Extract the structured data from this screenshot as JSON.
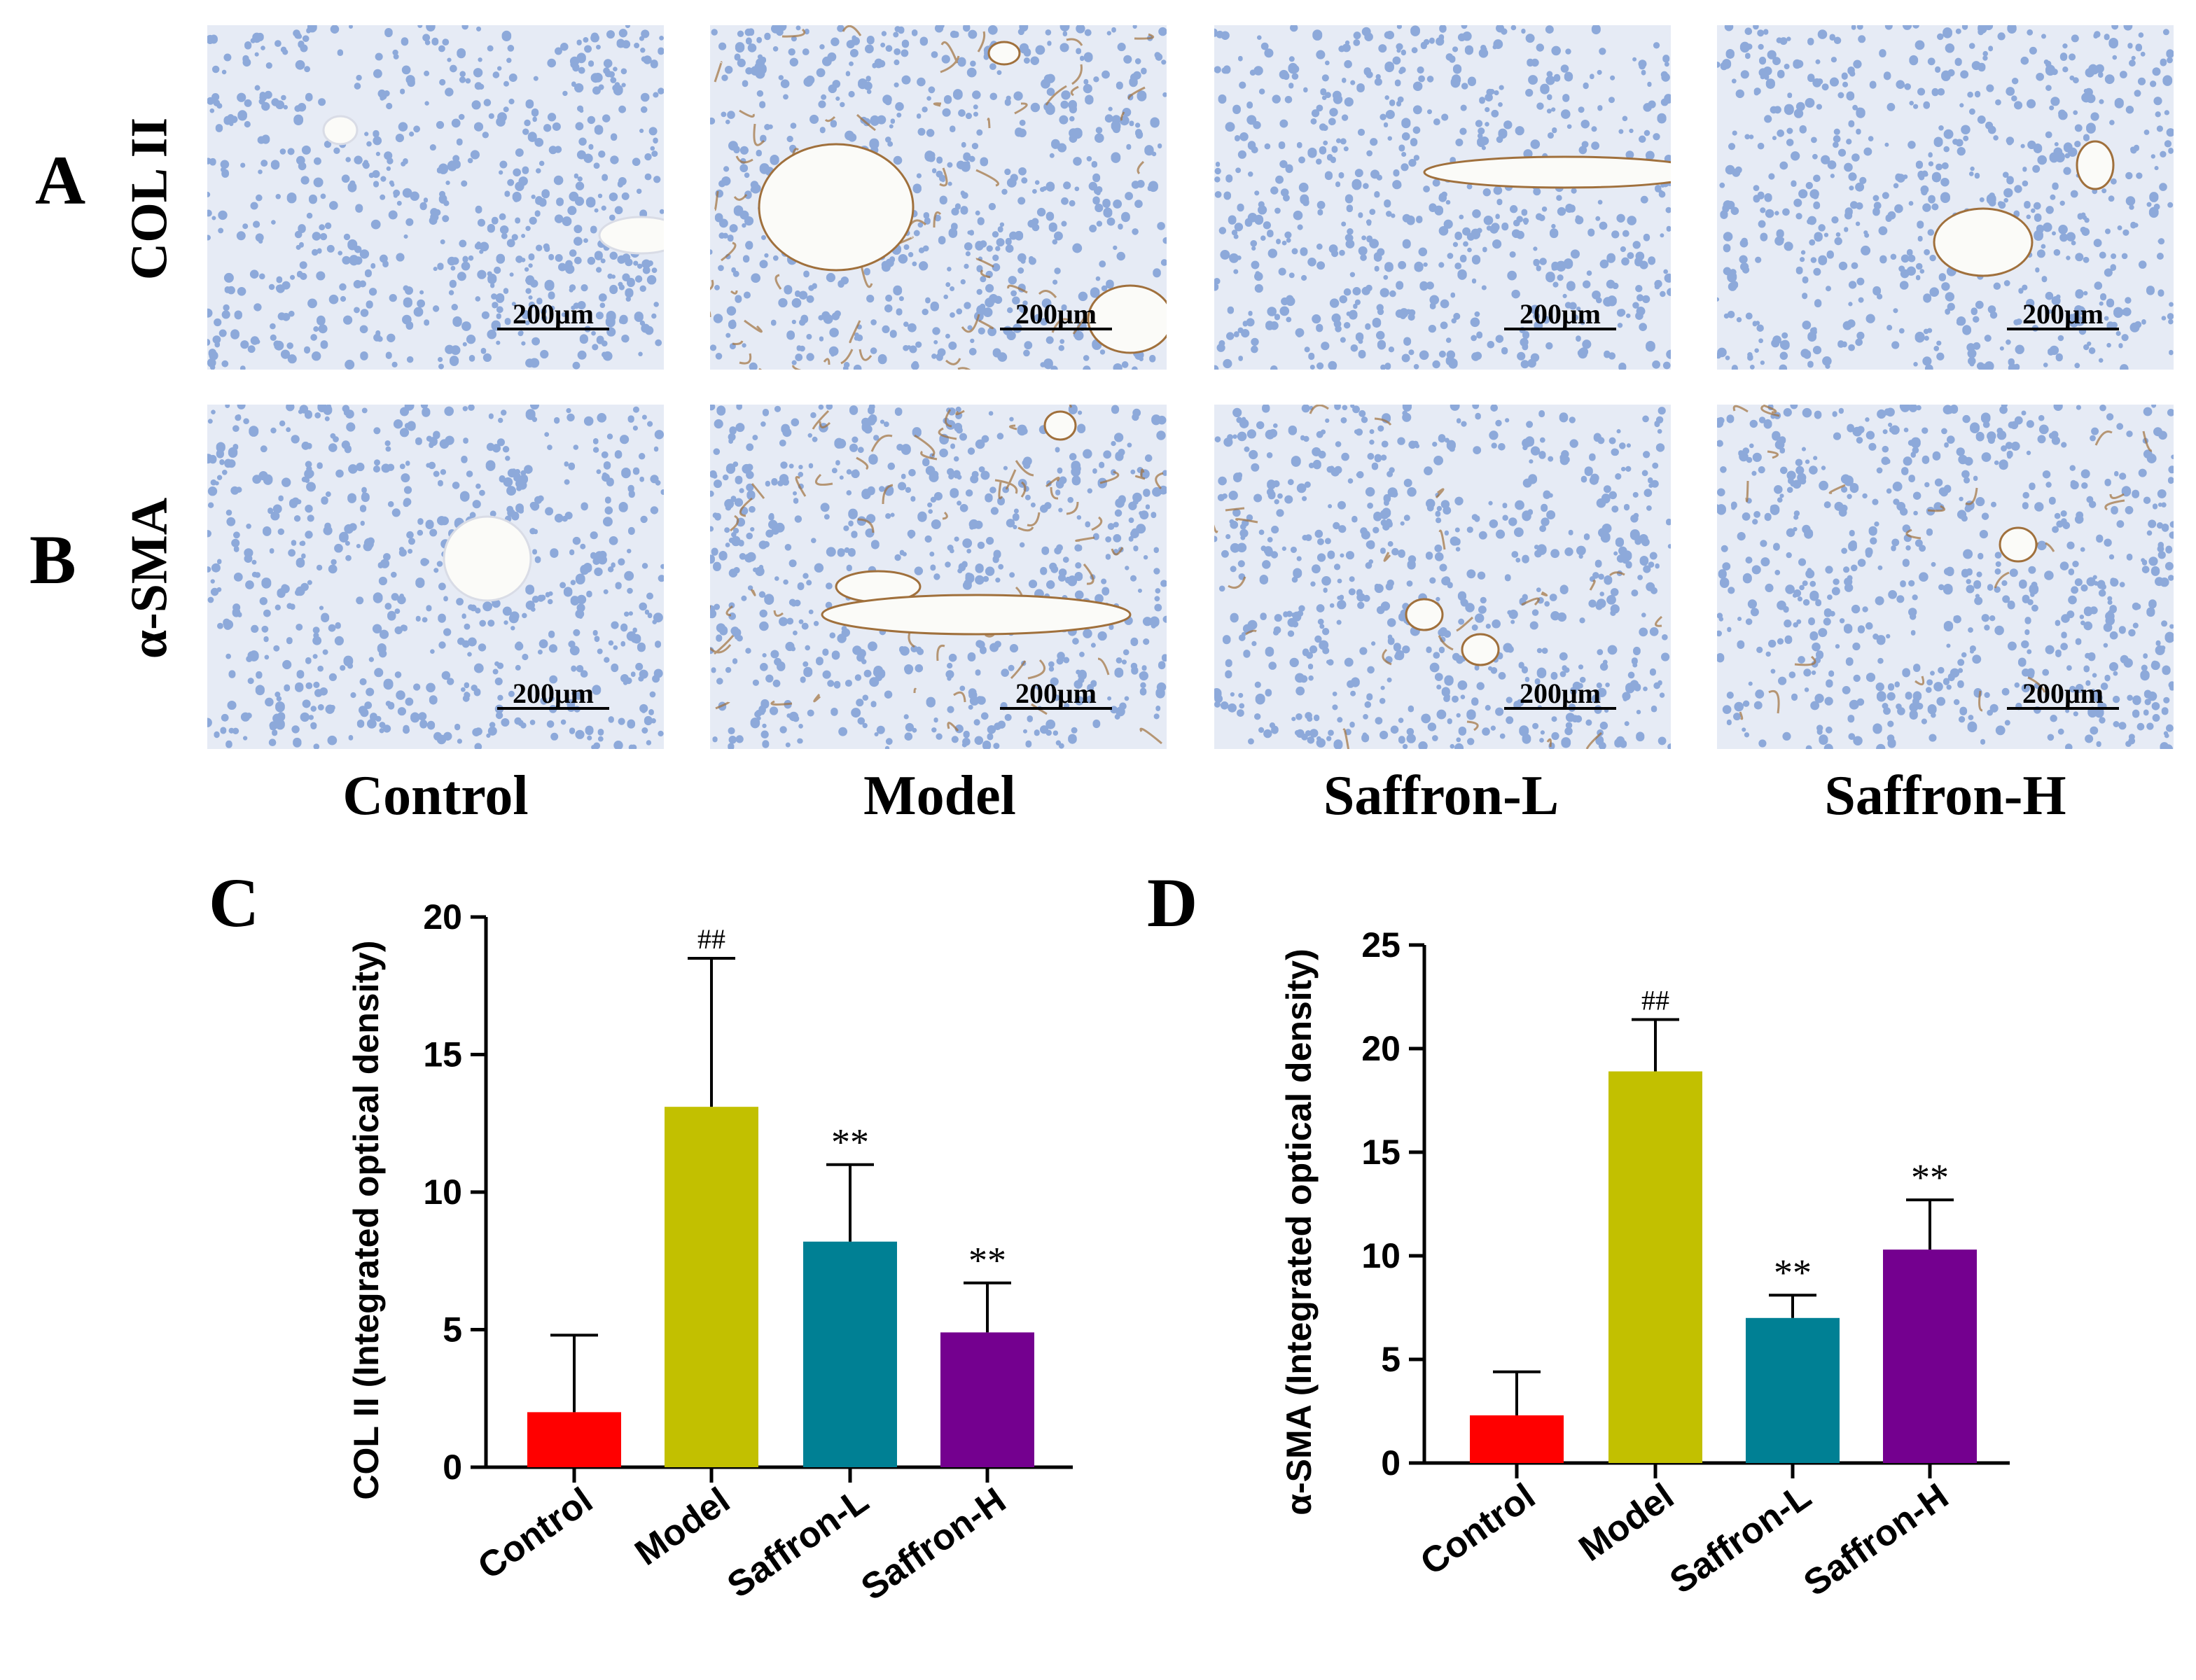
{
  "panels": {
    "a": "A",
    "b": "B",
    "c": "C",
    "d": "D"
  },
  "rows": {
    "a_label": "COL II",
    "b_label": "α-SMA"
  },
  "groups": [
    "Control",
    "Model",
    "Saffron-L",
    "Saffron-H"
  ],
  "scale_bar_label": "200μm",
  "micrographs": {
    "tissue_color": "#e6ebf5",
    "nuclei_color": "#6f93d0",
    "stain_color": "#a0703c"
  },
  "chart_data": [
    {
      "panel": "C",
      "type": "bar",
      "categories": [
        "Control",
        "Model",
        "Saffron-L",
        "Saffron-H"
      ],
      "values": [
        2.0,
        13.1,
        8.2,
        4.9
      ],
      "errors": [
        2.8,
        5.4,
        2.8,
        1.8
      ],
      "annotations": [
        "",
        "##",
        "**",
        "**"
      ],
      "colors": [
        "#ff0000",
        "#c2c000",
        "#008094",
        "#74008f"
      ],
      "ylabel": "COL II (Integrated optical density)",
      "ylim": [
        0,
        20
      ],
      "yticks": [
        0,
        5,
        10,
        15,
        20
      ],
      "grid": false
    },
    {
      "panel": "D",
      "type": "bar",
      "categories": [
        "Control",
        "Model",
        "Saffron-L",
        "Saffron-H"
      ],
      "values": [
        2.3,
        18.9,
        7.0,
        10.3
      ],
      "errors": [
        2.1,
        2.5,
        1.1,
        2.4
      ],
      "annotations": [
        "",
        "##",
        "**",
        "**"
      ],
      "colors": [
        "#ff0000",
        "#c2c000",
        "#008094",
        "#74008f"
      ],
      "ylabel": "α-SMA (Integrated optical density)",
      "ylim": [
        0,
        25
      ],
      "yticks": [
        0,
        5,
        10,
        15,
        20,
        25
      ],
      "grid": false
    }
  ]
}
